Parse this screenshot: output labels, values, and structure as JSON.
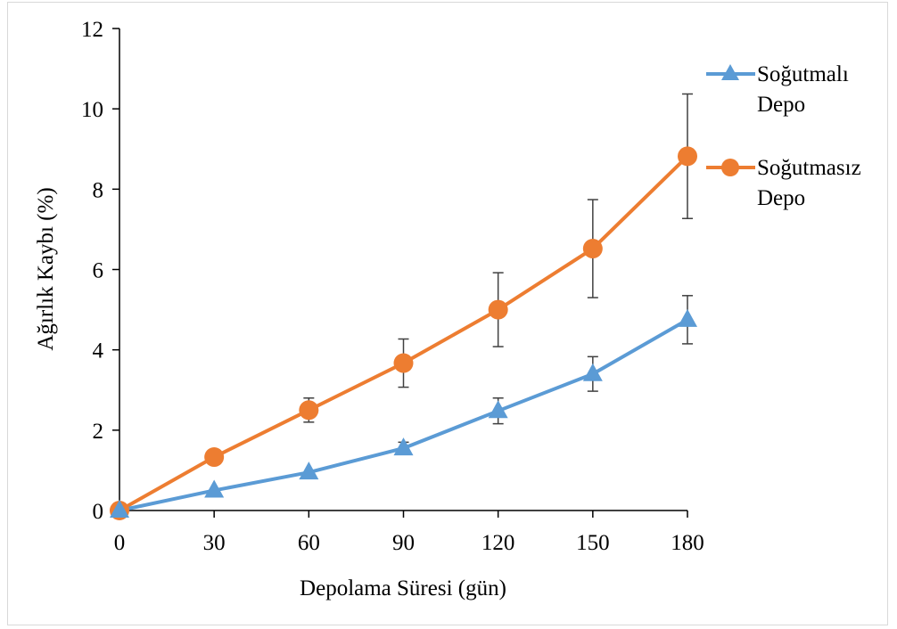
{
  "chart_data": {
    "type": "line",
    "title": "",
    "xlabel": "Depolama Süresi (gün)",
    "ylabel": "Ağırlık Kaybı (%)",
    "x": [
      0,
      30,
      60,
      90,
      120,
      150,
      180
    ],
    "x_tick_labels": [
      "0",
      "30",
      "60",
      "90",
      "120",
      "150",
      "180"
    ],
    "y_tick_labels": [
      "0",
      "2",
      "4",
      "6",
      "8",
      "10",
      "12"
    ],
    "xlim": [
      0,
      180
    ],
    "ylim": [
      0,
      12
    ],
    "grid": false,
    "legend_position": "right",
    "series": [
      {
        "name_lines": [
          "Soğutmalı",
          "Depo"
        ],
        "marker": "triangle",
        "color": "#5b9bd5",
        "values": [
          0,
          0.5,
          0.95,
          1.55,
          2.48,
          3.4,
          4.75
        ],
        "error": [
          0,
          0,
          0,
          0.15,
          0.32,
          0.43,
          0.6
        ]
      },
      {
        "name_lines": [
          "Soğutmasız",
          "Depo"
        ],
        "marker": "circle",
        "color": "#ed7d31",
        "values": [
          0,
          1.33,
          2.5,
          3.67,
          5.0,
          6.52,
          8.82
        ],
        "error": [
          0,
          0,
          0.3,
          0.6,
          0.92,
          1.22,
          1.55
        ]
      }
    ]
  }
}
